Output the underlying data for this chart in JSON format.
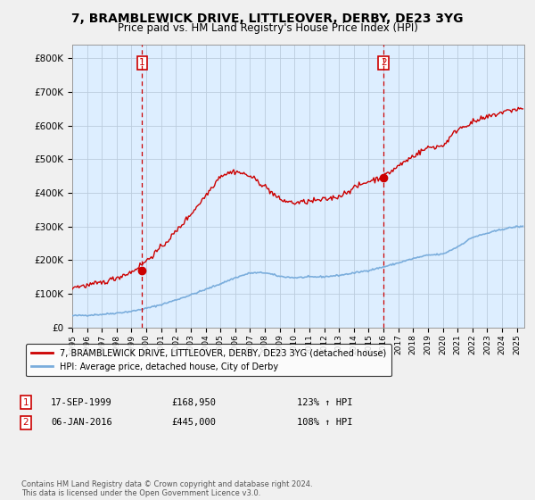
{
  "title": "7, BRAMBLEWICK DRIVE, LITTLEOVER, DERBY, DE23 3YG",
  "subtitle": "Price paid vs. HM Land Registry's House Price Index (HPI)",
  "title_fontsize": 10,
  "subtitle_fontsize": 8.5,
  "xlim": [
    1995.0,
    2025.5
  ],
  "ylim": [
    0,
    840000
  ],
  "yticks": [
    0,
    100000,
    200000,
    300000,
    400000,
    500000,
    600000,
    700000,
    800000
  ],
  "ytick_labels": [
    "£0",
    "£100K",
    "£200K",
    "£300K",
    "£400K",
    "£500K",
    "£600K",
    "£700K",
    "£800K"
  ],
  "xtick_years": [
    1995,
    1996,
    1997,
    1998,
    1999,
    2000,
    2001,
    2002,
    2003,
    2004,
    2005,
    2006,
    2007,
    2008,
    2009,
    2010,
    2011,
    2012,
    2013,
    2014,
    2015,
    2016,
    2017,
    2018,
    2019,
    2020,
    2021,
    2022,
    2023,
    2024,
    2025
  ],
  "purchase1_x": 1999.72,
  "purchase1_y": 168950,
  "purchase1_label": "1",
  "purchase1_date": "17-SEP-1999",
  "purchase1_price": "£168,950",
  "purchase1_hpi": "123% ↑ HPI",
  "purchase2_x": 2016.02,
  "purchase2_y": 445000,
  "purchase2_label": "2",
  "purchase2_date": "06-JAN-2016",
  "purchase2_price": "£445,000",
  "purchase2_hpi": "108% ↑ HPI",
  "line1_color": "#cc0000",
  "line2_color": "#7aaddc",
  "vline_color": "#cc0000",
  "plot_bg_color": "#ddeeff",
  "background_color": "#f0f0f0",
  "grid_color": "#bbccdd",
  "legend_line1": "7, BRAMBLEWICK DRIVE, LITTLEOVER, DERBY, DE23 3YG (detached house)",
  "legend_line2": "HPI: Average price, detached house, City of Derby",
  "footnote": "Contains HM Land Registry data © Crown copyright and database right 2024.\nThis data is licensed under the Open Government Licence v3.0.",
  "hpi_years": [
    1995,
    1996,
    1997,
    1998,
    1999,
    2000,
    2001,
    2002,
    2003,
    2004,
    2005,
    2006,
    2007,
    2008,
    2009,
    2010,
    2011,
    2012,
    2013,
    2014,
    2015,
    2016,
    2017,
    2018,
    2019,
    2020,
    2021,
    2022,
    2023,
    2024,
    2025
  ],
  "hpi_values": [
    35000,
    36500,
    39000,
    43000,
    48000,
    57000,
    68000,
    82000,
    97000,
    113000,
    130000,
    148000,
    162000,
    163000,
    152000,
    148000,
    150000,
    151000,
    155000,
    162000,
    170000,
    180000,
    192000,
    205000,
    215000,
    218000,
    240000,
    268000,
    280000,
    292000,
    300000
  ],
  "red_years": [
    1995,
    1996,
    1997,
    1998,
    1999,
    2000,
    2001,
    2002,
    2003,
    2004,
    2005,
    2006,
    2007,
    2008,
    2009,
    2010,
    2011,
    2012,
    2013,
    2014,
    2015,
    2016,
    2017,
    2018,
    2019,
    2020,
    2021,
    2022,
    2023,
    2024,
    2025
  ],
  "red_values": [
    120000,
    125000,
    133000,
    148000,
    165000,
    198000,
    238000,
    285000,
    337000,
    392000,
    452000,
    465000,
    450000,
    420000,
    380000,
    370000,
    375000,
    380000,
    390000,
    415000,
    435000,
    448000,
    480000,
    510000,
    535000,
    540000,
    590000,
    610000,
    625000,
    640000,
    650000
  ]
}
